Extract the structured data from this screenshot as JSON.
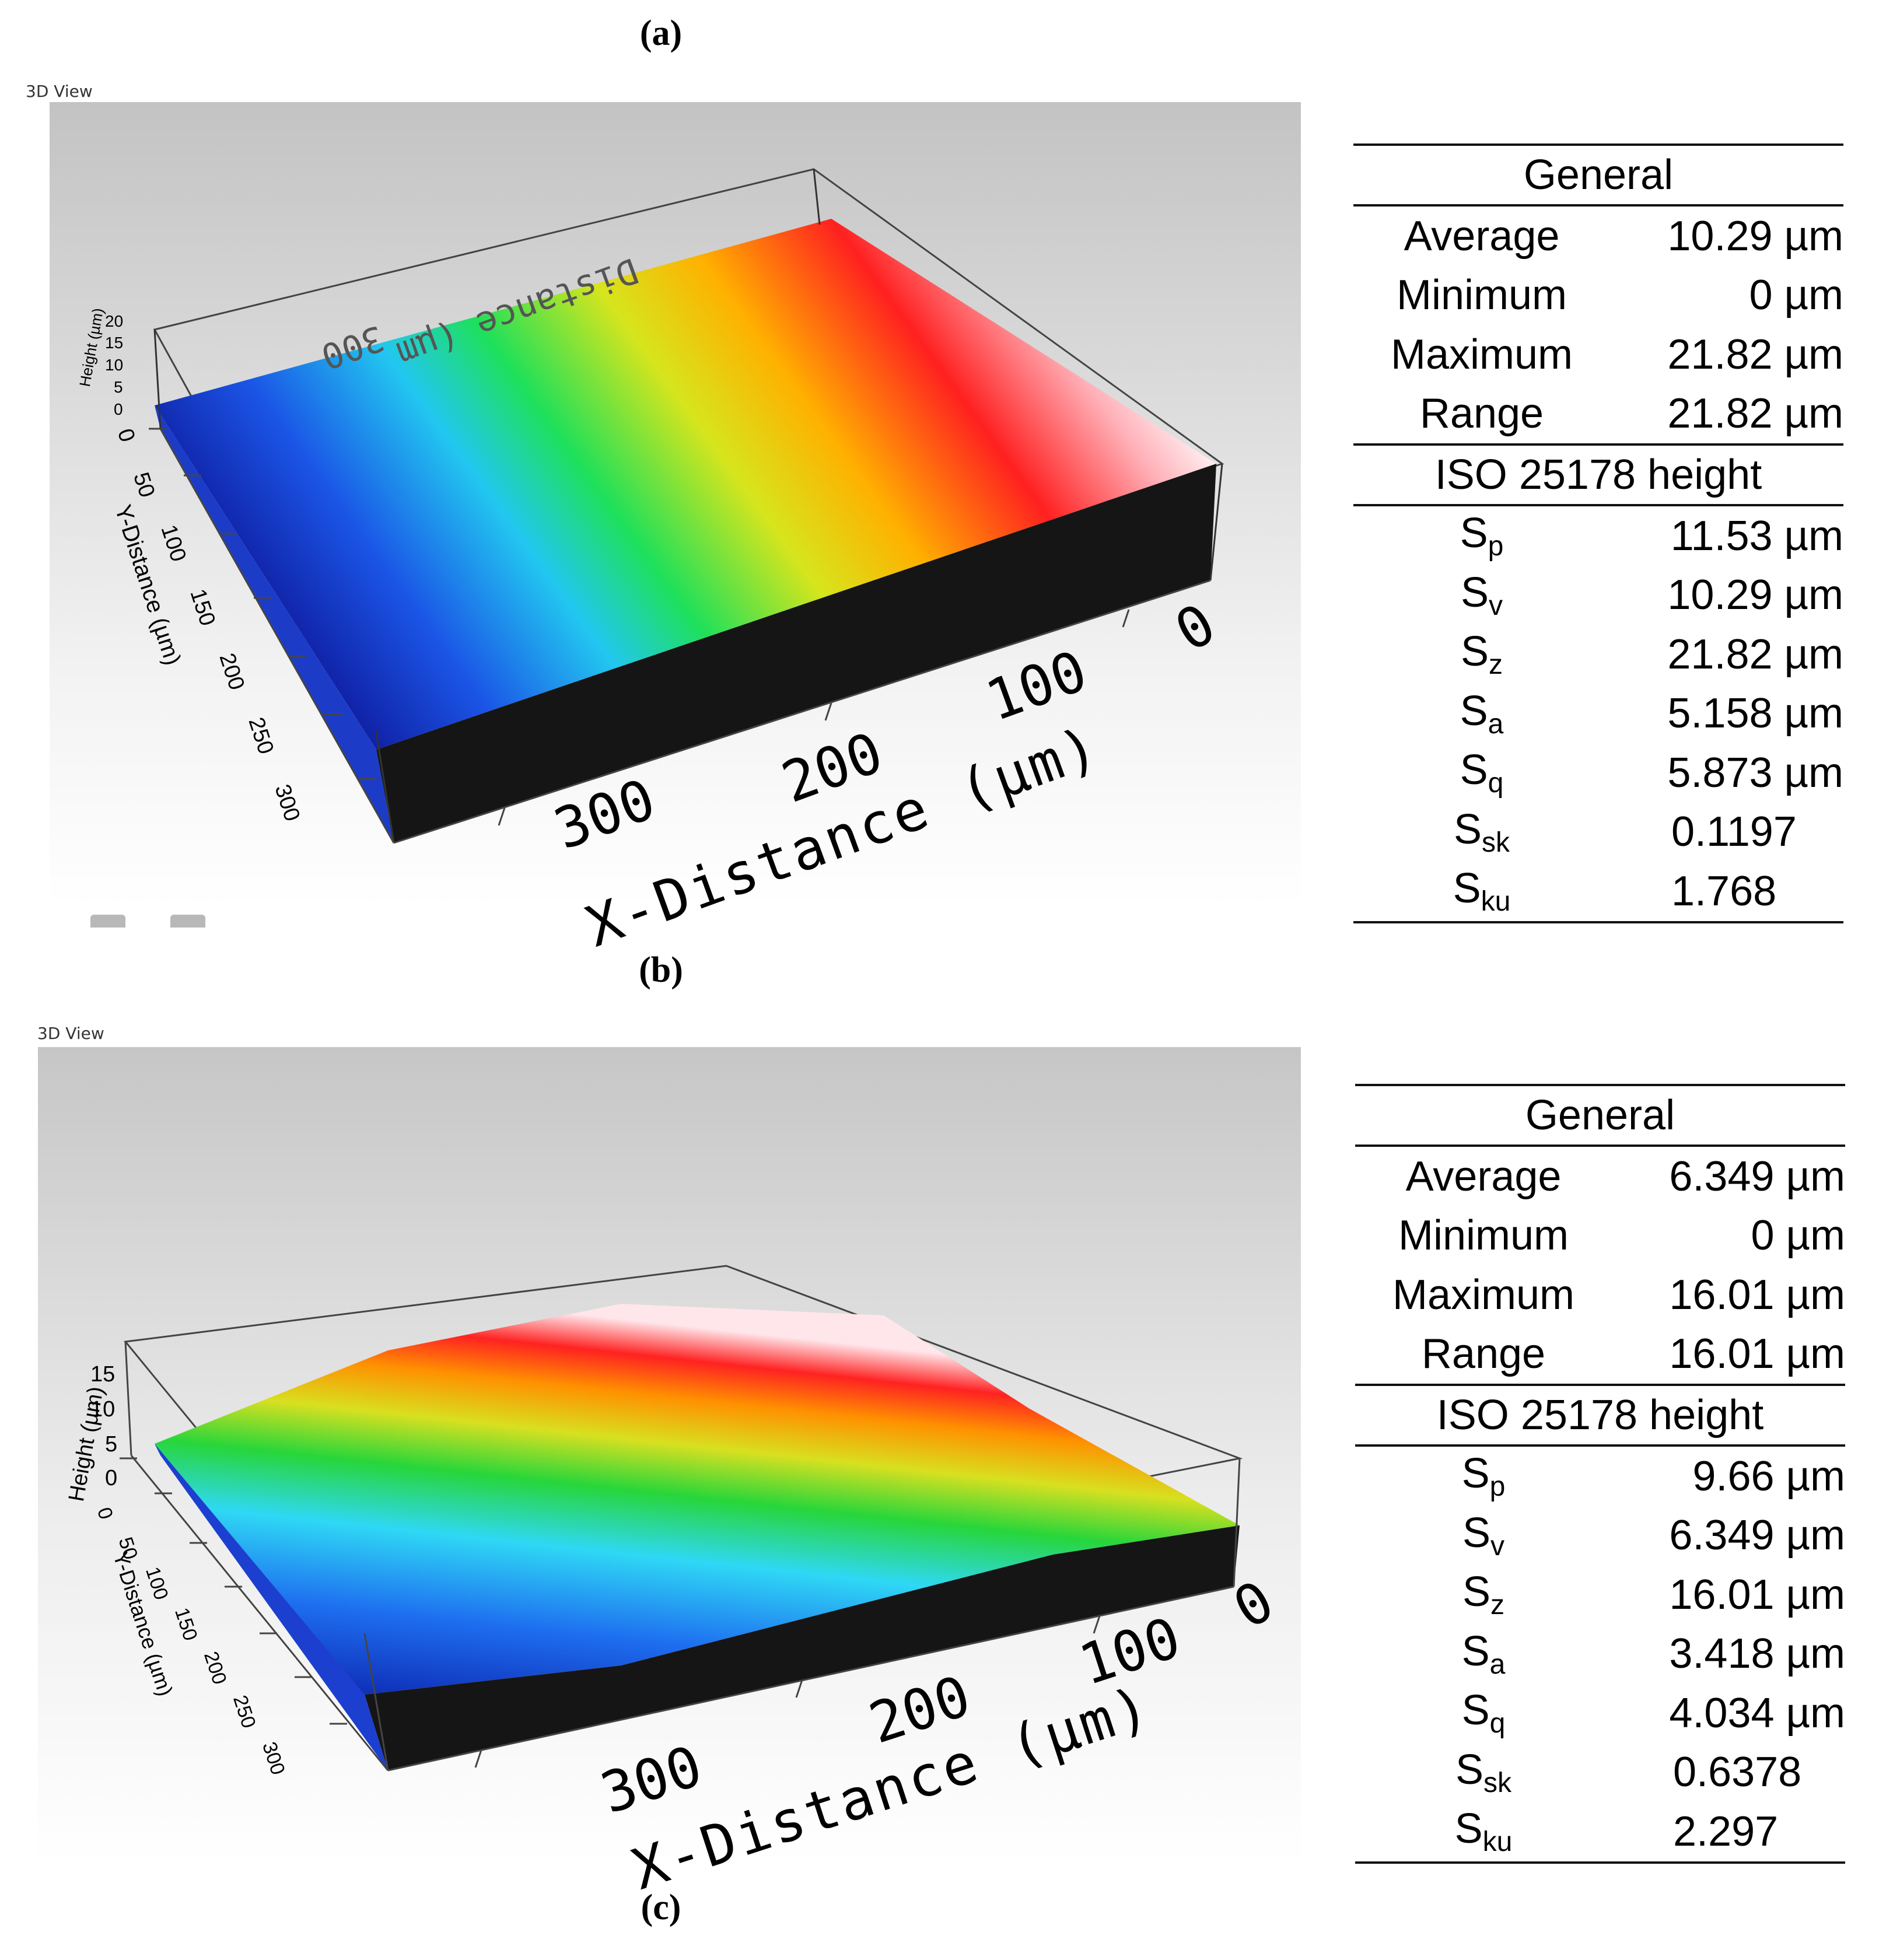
{
  "panels": [
    {
      "caption": "(a)",
      "viewer_title": "3D View",
      "axes": {
        "height_label": "Height (µm)",
        "height_ticks": [
          "20",
          "15",
          "10",
          "5",
          "0"
        ],
        "y_label": "Y-Distance (µm)",
        "y_ticks": [
          "0",
          "50",
          "100",
          "150",
          "200",
          "250",
          "300"
        ],
        "x_label": "X-Distance (µm)",
        "x_ticks": [
          "300",
          "200",
          "100",
          "0"
        ],
        "back_label": "Distance (µm",
        "back_tick": "300"
      },
      "stats": {
        "general_title": "General",
        "general": [
          {
            "label": "Average",
            "value": "10.29 µm"
          },
          {
            "label": "Minimum",
            "value": "0 µm"
          },
          {
            "label": "Maximum",
            "value": "21.82 µm"
          },
          {
            "label": "Range",
            "value": "21.82 µm"
          }
        ],
        "iso_title": "ISO 25178 height",
        "iso": [
          {
            "sym": "S",
            "sub": "p",
            "value": "11.53 µm"
          },
          {
            "sym": "S",
            "sub": "v",
            "value": "10.29 µm"
          },
          {
            "sym": "S",
            "sub": "z",
            "value": "21.82 µm"
          },
          {
            "sym": "S",
            "sub": "a",
            "value": "5.158 µm"
          },
          {
            "sym": "S",
            "sub": "q",
            "value": "5.873 µm"
          },
          {
            "sym": "S",
            "sub": "sk",
            "value": "0.1197"
          },
          {
            "sym": "S",
            "sub": "ku",
            "value": "1.768"
          }
        ]
      }
    },
    {
      "caption": "(b)",
      "viewer_title": "3D View",
      "axes": {
        "height_label": "Height (µm)",
        "height_ticks": [
          "15",
          "10",
          "5",
          "0"
        ],
        "y_label": "Y-Distance (µm)",
        "y_ticks": [
          "0",
          "50",
          "100",
          "150",
          "200",
          "250",
          "300"
        ],
        "x_label": "X-Distance (µm)",
        "x_ticks": [
          "300",
          "200",
          "100",
          "0"
        ]
      },
      "stats": {
        "general_title": "General",
        "general": [
          {
            "label": "Average",
            "value": "6.349 µm"
          },
          {
            "label": "Minimum",
            "value": "0 µm"
          },
          {
            "label": "Maximum",
            "value": "16.01 µm"
          },
          {
            "label": "Range",
            "value": "16.01 µm"
          }
        ],
        "iso_title": "ISO 25178 height",
        "iso": [
          {
            "sym": "S",
            "sub": "p",
            "value": "9.66 µm"
          },
          {
            "sym": "S",
            "sub": "v",
            "value": "6.349 µm"
          },
          {
            "sym": "S",
            "sub": "z",
            "value": "16.01 µm"
          },
          {
            "sym": "S",
            "sub": "a",
            "value": "3.418 µm"
          },
          {
            "sym": "S",
            "sub": "q",
            "value": "4.034 µm"
          },
          {
            "sym": "S",
            "sub": "sk",
            "value": "0.6378"
          },
          {
            "sym": "S",
            "sub": "ku",
            "value": "2.297"
          }
        ]
      }
    }
  ],
  "footer_caption": "(c)",
  "colors": {
    "viewer_background_top": "#c6c6c6",
    "viewer_background_bottom": "#ffffff",
    "surface_low": "#1a1aa0",
    "surface_high": "#ff1a1a",
    "surface_top": "#ffffff",
    "side_wall": "#151515"
  }
}
